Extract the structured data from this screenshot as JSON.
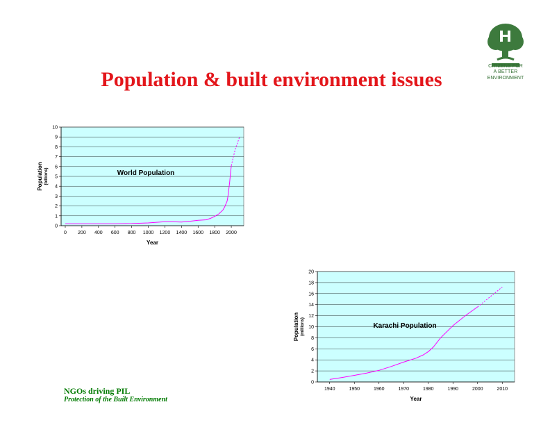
{
  "slide": {
    "title": "Population & built environment issues"
  },
  "logo": {
    "line1": "CITIZENS FOR",
    "line2": "A  BETTER",
    "line3": "ENVIRONMENT",
    "icon": "tree-icon",
    "color": "#2e6b2e"
  },
  "footer": {
    "org": "NGOs driving PIL",
    "subtitle": "Protection of the Built Environment"
  },
  "colors": {
    "title": "#e3161b",
    "plot_background": "#ccffff",
    "series_line": "#ff00ff",
    "footer": "#007a00"
  },
  "chart_data": [
    {
      "type": "line",
      "title": "World Population",
      "xlabel": "Year",
      "ylabel": "Population",
      "ylabel_unit": "(billions)",
      "xlim": [
        -50,
        2150
      ],
      "ylim": [
        0,
        10
      ],
      "xticks": [
        "0",
        "200",
        "400",
        "600",
        "800",
        "1000",
        "1200",
        "1400",
        "1600",
        "1800",
        "2000"
      ],
      "yticks": [
        "0",
        "1",
        "2",
        "3",
        "4",
        "5",
        "6",
        "7",
        "8",
        "9",
        "10"
      ],
      "grid": true,
      "series": [
        {
          "style": "solid",
          "x": [
            0,
            200,
            400,
            600,
            800,
            1000,
            1200,
            1300,
            1400,
            1500,
            1600,
            1700,
            1750,
            1800,
            1850,
            1900,
            1920,
            1940,
            1950,
            1960,
            1970,
            1980,
            1990,
            2000
          ],
          "y": [
            0.2,
            0.2,
            0.2,
            0.2,
            0.22,
            0.28,
            0.4,
            0.4,
            0.37,
            0.45,
            0.55,
            0.6,
            0.75,
            0.95,
            1.2,
            1.6,
            1.9,
            2.3,
            2.5,
            3.0,
            3.7,
            4.4,
            5.3,
            6.1
          ]
        },
        {
          "style": "dashed",
          "x": [
            2000,
            2025,
            2050,
            2075,
            2100
          ],
          "y": [
            6.1,
            7.0,
            7.8,
            8.4,
            9.0
          ]
        }
      ]
    },
    {
      "type": "line",
      "title": "Karachi Population",
      "xlabel": "Year",
      "ylabel": "Population",
      "ylabel_unit": "(millions)",
      "xlim": [
        1935,
        2015
      ],
      "ylim": [
        0,
        20
      ],
      "xticks": [
        "1940",
        "1950",
        "1960",
        "1970",
        "1980",
        "1990",
        "2000",
        "2010"
      ],
      "yticks": [
        "0",
        "2",
        "4",
        "6",
        "8",
        "10",
        "12",
        "14",
        "16",
        "18",
        "20"
      ],
      "grid": true,
      "series": [
        {
          "style": "solid",
          "x": [
            1940,
            1945,
            1950,
            1955,
            1960,
            1965,
            1970,
            1975,
            1978,
            1980,
            1982,
            1985,
            1990,
            1995,
            2000
          ],
          "y": [
            0.45,
            0.8,
            1.2,
            1.6,
            2.1,
            2.8,
            3.6,
            4.3,
            4.9,
            5.5,
            6.3,
            8.0,
            10.2,
            12.0,
            13.6
          ]
        },
        {
          "style": "dashed",
          "x": [
            2000,
            2005,
            2010
          ],
          "y": [
            13.6,
            15.4,
            17.2
          ]
        }
      ]
    }
  ]
}
